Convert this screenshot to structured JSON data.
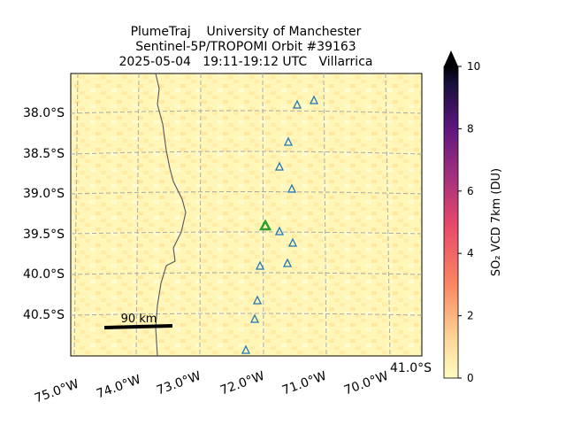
{
  "title": {
    "lines": [
      "PlumeTraj    University of Manchester",
      "Sentinel-5P/TROPOMI Orbit #39163",
      "2025-05-04   19:11-19:12 UTC   Villarrica"
    ]
  },
  "map": {
    "lat_labels": [
      "38.0°S",
      "38.5°S",
      "39.0°S",
      "39.5°S",
      "40.0°S",
      "40.5°S",
      "41.0°S"
    ],
    "lon_labels": [
      "75.0°W",
      "74.0°W",
      "73.0°W",
      "72.0°W",
      "71.0°W",
      "70.0°W"
    ],
    "scale_bar": "90 km"
  },
  "colorbar": {
    "label": "SO₂ VCD 7km (DU)",
    "lim": [
      0,
      10
    ],
    "ticks": [
      0,
      2,
      4,
      6,
      8,
      10
    ]
  }
}
